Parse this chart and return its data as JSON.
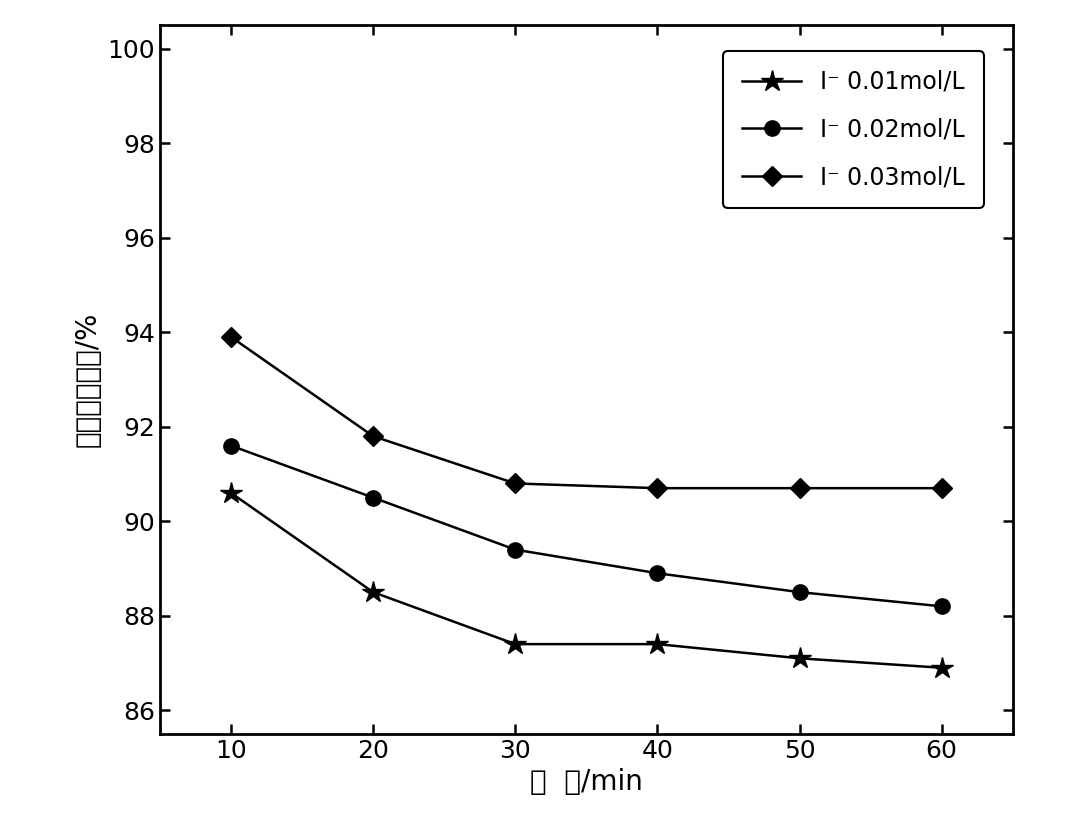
{
  "x": [
    10,
    20,
    30,
    40,
    50,
    60
  ],
  "series": [
    {
      "label": "I⁻ 0.01mol/L",
      "values": [
        90.6,
        88.5,
        87.4,
        87.4,
        87.1,
        86.9
      ],
      "marker": "*",
      "markersize": 16,
      "color": "#000000"
    },
    {
      "label": "I⁻ 0.02mol/L",
      "values": [
        91.6,
        90.5,
        89.4,
        88.9,
        88.5,
        88.2
      ],
      "marker": "o",
      "markersize": 11,
      "color": "#000000"
    },
    {
      "label": "I⁻ 0.03mol/L",
      "values": [
        93.9,
        91.8,
        90.8,
        90.7,
        90.7,
        90.7
      ],
      "marker": "D",
      "markersize": 10,
      "color": "#000000"
    }
  ],
  "xlabel": "时  间/min",
  "ylabel": "单质汞去除率/%",
  "ylim": [
    85.5,
    100.5
  ],
  "yticks": [
    86,
    88,
    90,
    92,
    94,
    96,
    98,
    100
  ],
  "xlim": [
    5,
    65
  ],
  "xticks": [
    10,
    20,
    30,
    40,
    50,
    60
  ],
  "legend_fontsize": 17,
  "axis_label_fontsize": 20,
  "tick_fontsize": 18,
  "linewidth": 1.8,
  "background_color": "#ffffff"
}
